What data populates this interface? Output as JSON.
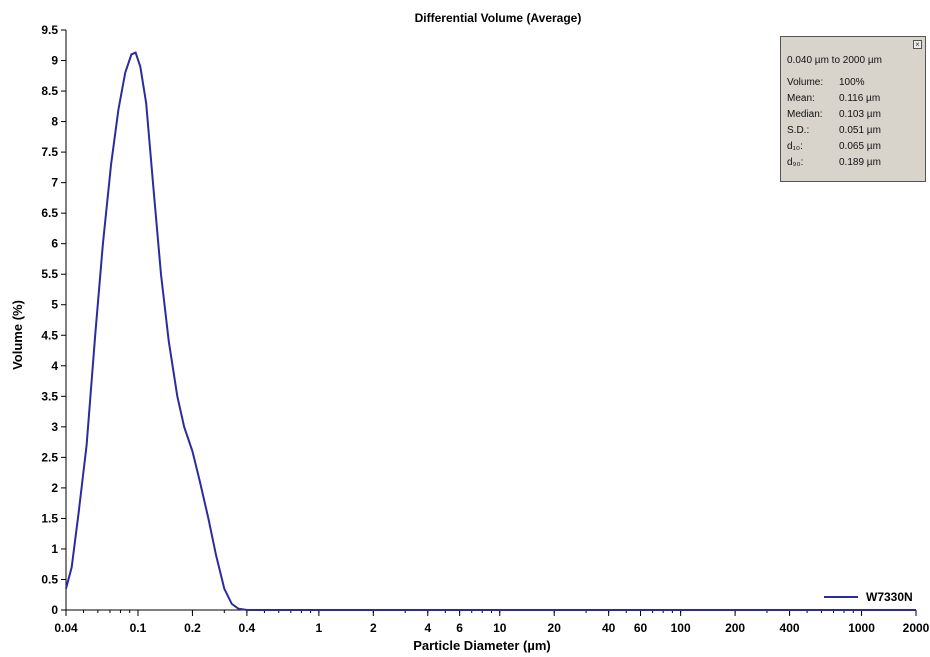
{
  "chart_data": {
    "type": "line",
    "title": "Differential Volume (Average)",
    "xlabel": "Particle Diameter (µm)",
    "ylabel": "Volume (%)",
    "xscale": "log",
    "xlim": [
      0.04,
      2000
    ],
    "ylim": [
      0,
      9.5
    ],
    "x_ticks": [
      "0.04",
      "0.1",
      "0.2",
      "0.4",
      "1",
      "2",
      "4",
      "6",
      "10",
      "20",
      "40",
      "60",
      "100",
      "200",
      "400",
      "1000",
      "2000"
    ],
    "y_ticks": [
      "0",
      "0.5",
      "1",
      "1.5",
      "2",
      "2.5",
      "3",
      "3.5",
      "4",
      "4.5",
      "5",
      "5.5",
      "6",
      "6.5",
      "7",
      "7.5",
      "8",
      "8.5",
      "9",
      "9.5"
    ],
    "grid": false,
    "legend_position": "bottom-right",
    "series": [
      {
        "name": "W7330N",
        "color": "#2b2ba0",
        "x": [
          0.04,
          0.043,
          0.047,
          0.052,
          0.058,
          0.064,
          0.071,
          0.078,
          0.085,
          0.092,
          0.097,
          0.103,
          0.111,
          0.121,
          0.134,
          0.148,
          0.165,
          0.18,
          0.2,
          0.22,
          0.245,
          0.27,
          0.3,
          0.33,
          0.36,
          0.4,
          0.45,
          1,
          10,
          100,
          1000,
          2000
        ],
        "y": [
          0.35,
          0.7,
          1.6,
          2.7,
          4.5,
          6.0,
          7.3,
          8.2,
          8.8,
          9.1,
          9.13,
          8.9,
          8.3,
          7.0,
          5.5,
          4.4,
          3.5,
          3.0,
          2.6,
          2.1,
          1.5,
          0.9,
          0.35,
          0.1,
          0.02,
          0.0,
          0.0,
          0.0,
          0.0,
          0.0,
          0.0,
          0.0
        ]
      }
    ]
  },
  "stats": {
    "range": "0.040 µm to 2000 µm",
    "rows": [
      {
        "key": "Volume:",
        "value": "100%"
      },
      {
        "key": "Mean:",
        "value": "0.116 µm"
      },
      {
        "key": "Median:",
        "value": "0.103 µm"
      },
      {
        "key": "S.D.:",
        "value": "0.051 µm"
      },
      {
        "key": "d₁₀:",
        "value": "0.065 µm"
      },
      {
        "key": "d₉₀:",
        "value": "0.189 µm"
      }
    ],
    "close_glyph": "×"
  }
}
